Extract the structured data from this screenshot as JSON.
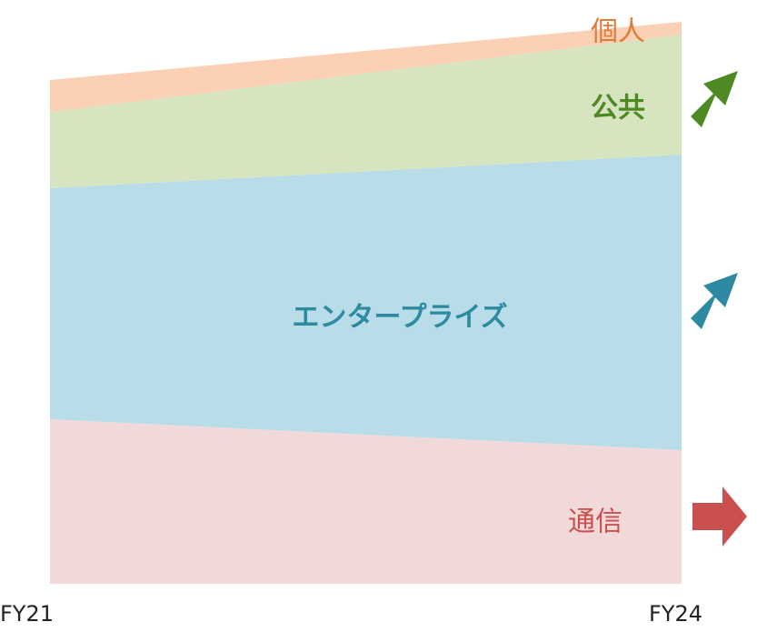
{
  "chart_data": {
    "type": "stacked_area",
    "categories": [
      "FY21",
      "FY24"
    ],
    "series": [
      {
        "name": "通信",
        "color": "#f2d9d9",
        "label_color": "#c9504e",
        "values": [
          181,
          147
        ]
      },
      {
        "name": "エンタープライズ",
        "color": "#b8dde8",
        "label_color": "#2e8aa0",
        "values": [
          254,
          325
        ]
      },
      {
        "name": "公共",
        "color": "#d6e4c0",
        "label_color": "#4e8a24",
        "values": [
          84,
          132
        ]
      },
      {
        "name": "個人",
        "color": "#fbd0b5",
        "label_color": "#e07b39",
        "values": [
          35,
          14
        ]
      }
    ],
    "ylim": [
      0,
      620
    ]
  }
}
